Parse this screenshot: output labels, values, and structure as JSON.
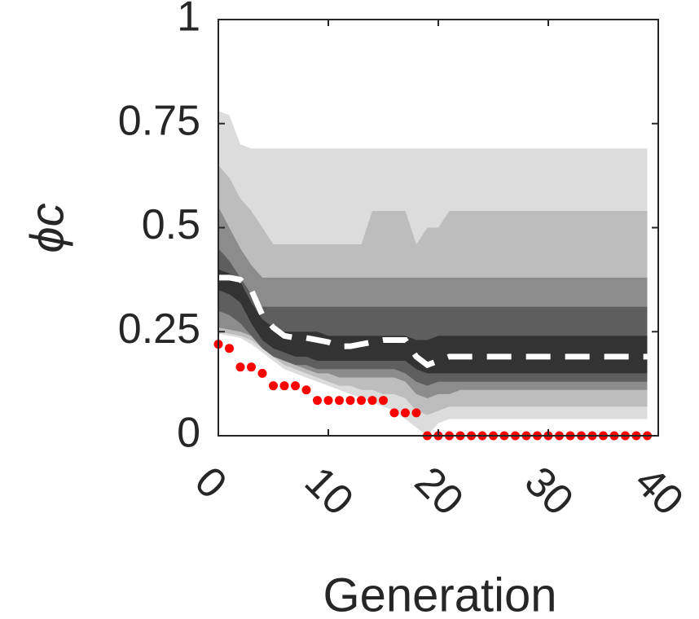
{
  "chart_data": {
    "type": "band",
    "xlabel": "Generation",
    "ylabel": "ϕc",
    "xlim": [
      0,
      40
    ],
    "xticks": [
      0,
      10,
      20,
      30,
      40
    ],
    "ylim": [
      0,
      1
    ],
    "yticks": [
      0,
      0.25,
      0.5,
      0.75,
      1
    ],
    "x": [
      0,
      1,
      2,
      3,
      4,
      5,
      6,
      7,
      8,
      9,
      10,
      11,
      12,
      13,
      14,
      15,
      16,
      17,
      18,
      19,
      20,
      21,
      22,
      23,
      24,
      25,
      26,
      27,
      28,
      29,
      30,
      31,
      32,
      33,
      34,
      35,
      36,
      37,
      38,
      39
    ],
    "bands": [
      {
        "color": "#dcdcdc",
        "upper": [
          0.78,
          0.77,
          0.7,
          0.69,
          0.69,
          0.69,
          0.69,
          0.69,
          0.69,
          0.69,
          0.69,
          0.69,
          0.69,
          0.69,
          0.69,
          0.69,
          0.69,
          0.69,
          0.69,
          0.69,
          0.69,
          0.69,
          0.69,
          0.69,
          0.69,
          0.69,
          0.69,
          0.69,
          0.69,
          0.69,
          0.69,
          0.69,
          0.69,
          0.69,
          0.69,
          0.69,
          0.69,
          0.69,
          0.69,
          0.69
        ],
        "lower": [
          0.245,
          0.24,
          0.235,
          0.22,
          0.2,
          0.18,
          0.16,
          0.15,
          0.14,
          0.13,
          0.12,
          0.11,
          0.1,
          0.09,
          0.08,
          0.07,
          0.06,
          0.04,
          0.02,
          0.0,
          0.03,
          0.04,
          0.04,
          0.04,
          0.04,
          0.04,
          0.04,
          0.04,
          0.04,
          0.04,
          0.04,
          0.04,
          0.04,
          0.04,
          0.04,
          0.04,
          0.04,
          0.04,
          0.04,
          0.04
        ]
      },
      {
        "color": "#bdbdbd",
        "upper": [
          0.65,
          0.62,
          0.57,
          0.54,
          0.5,
          0.46,
          0.46,
          0.46,
          0.46,
          0.46,
          0.46,
          0.46,
          0.46,
          0.46,
          0.54,
          0.54,
          0.54,
          0.54,
          0.46,
          0.5,
          0.5,
          0.54,
          0.54,
          0.54,
          0.54,
          0.54,
          0.54,
          0.54,
          0.54,
          0.54,
          0.54,
          0.54,
          0.54,
          0.54,
          0.54,
          0.54,
          0.54,
          0.54,
          0.54,
          0.54
        ],
        "lower": [
          0.25,
          0.245,
          0.24,
          0.23,
          0.21,
          0.19,
          0.17,
          0.16,
          0.15,
          0.14,
          0.13,
          0.12,
          0.12,
          0.11,
          0.11,
          0.1,
          0.1,
          0.09,
          0.06,
          0.05,
          0.06,
          0.07,
          0.07,
          0.07,
          0.07,
          0.07,
          0.07,
          0.07,
          0.07,
          0.07,
          0.07,
          0.07,
          0.07,
          0.07,
          0.07,
          0.07,
          0.07,
          0.07,
          0.07,
          0.07
        ]
      },
      {
        "color": "#8c8c8c",
        "upper": [
          0.55,
          0.5,
          0.45,
          0.41,
          0.38,
          0.38,
          0.38,
          0.38,
          0.38,
          0.38,
          0.38,
          0.38,
          0.38,
          0.38,
          0.38,
          0.38,
          0.38,
          0.38,
          0.38,
          0.38,
          0.38,
          0.38,
          0.38,
          0.38,
          0.38,
          0.38,
          0.38,
          0.38,
          0.38,
          0.38,
          0.38,
          0.38,
          0.38,
          0.38,
          0.38,
          0.38,
          0.38,
          0.38,
          0.38,
          0.38
        ],
        "lower": [
          0.26,
          0.255,
          0.25,
          0.24,
          0.22,
          0.2,
          0.18,
          0.17,
          0.16,
          0.15,
          0.15,
          0.14,
          0.14,
          0.14,
          0.14,
          0.14,
          0.14,
          0.13,
          0.1,
          0.09,
          0.1,
          0.1,
          0.11,
          0.11,
          0.11,
          0.11,
          0.11,
          0.11,
          0.11,
          0.11,
          0.11,
          0.11,
          0.11,
          0.11,
          0.11,
          0.11,
          0.11,
          0.11,
          0.11,
          0.11
        ]
      },
      {
        "color": "#5e5e5e",
        "upper": [
          0.45,
          0.42,
          0.38,
          0.34,
          0.31,
          0.31,
          0.31,
          0.31,
          0.31,
          0.31,
          0.31,
          0.31,
          0.31,
          0.31,
          0.31,
          0.31,
          0.31,
          0.31,
          0.31,
          0.31,
          0.31,
          0.31,
          0.31,
          0.31,
          0.31,
          0.31,
          0.31,
          0.31,
          0.31,
          0.31,
          0.31,
          0.31,
          0.31,
          0.31,
          0.31,
          0.31,
          0.31,
          0.31,
          0.31,
          0.31
        ],
        "lower": [
          0.3,
          0.29,
          0.27,
          0.24,
          0.21,
          0.19,
          0.18,
          0.17,
          0.17,
          0.16,
          0.16,
          0.16,
          0.16,
          0.16,
          0.16,
          0.16,
          0.16,
          0.15,
          0.13,
          0.12,
          0.13,
          0.13,
          0.13,
          0.13,
          0.13,
          0.13,
          0.13,
          0.13,
          0.13,
          0.13,
          0.13,
          0.13,
          0.13,
          0.13,
          0.13,
          0.13,
          0.13,
          0.13,
          0.13,
          0.13
        ]
      },
      {
        "color": "#333333",
        "upper": [
          0.4,
          0.39,
          0.37,
          0.32,
          0.28,
          0.26,
          0.25,
          0.25,
          0.25,
          0.25,
          0.24,
          0.24,
          0.24,
          0.24,
          0.24,
          0.24,
          0.24,
          0.24,
          0.23,
          0.23,
          0.24,
          0.24,
          0.24,
          0.24,
          0.24,
          0.24,
          0.24,
          0.24,
          0.24,
          0.24,
          0.24,
          0.24,
          0.24,
          0.24,
          0.24,
          0.24,
          0.24,
          0.24,
          0.24,
          0.24
        ],
        "lower": [
          0.35,
          0.34,
          0.32,
          0.27,
          0.23,
          0.21,
          0.2,
          0.19,
          0.19,
          0.18,
          0.18,
          0.18,
          0.18,
          0.18,
          0.18,
          0.18,
          0.18,
          0.18,
          0.16,
          0.15,
          0.15,
          0.15,
          0.15,
          0.15,
          0.15,
          0.15,
          0.15,
          0.15,
          0.15,
          0.15,
          0.15,
          0.15,
          0.15,
          0.15,
          0.15,
          0.15,
          0.15,
          0.15,
          0.15,
          0.15
        ]
      }
    ],
    "median": {
      "color": "#ffffff",
      "values": [
        0.38,
        0.38,
        0.375,
        0.35,
        0.29,
        0.26,
        0.24,
        0.235,
        0.235,
        0.23,
        0.225,
        0.215,
        0.215,
        0.22,
        0.225,
        0.23,
        0.23,
        0.23,
        0.19,
        0.17,
        0.18,
        0.19,
        0.19,
        0.19,
        0.19,
        0.19,
        0.19,
        0.19,
        0.19,
        0.19,
        0.19,
        0.19,
        0.19,
        0.19,
        0.19,
        0.19,
        0.19,
        0.19,
        0.19,
        0.19
      ]
    },
    "minimum": {
      "color": "#ff0000",
      "values": [
        0.22,
        0.21,
        0.165,
        0.165,
        0.15,
        0.12,
        0.12,
        0.12,
        0.11,
        0.085,
        0.085,
        0.085,
        0.085,
        0.085,
        0.085,
        0.085,
        0.055,
        0.055,
        0.055,
        0,
        0,
        0,
        0,
        0,
        0,
        0,
        0,
        0,
        0,
        0,
        0,
        0,
        0,
        0,
        0,
        0,
        0,
        0,
        0,
        0
      ]
    }
  }
}
